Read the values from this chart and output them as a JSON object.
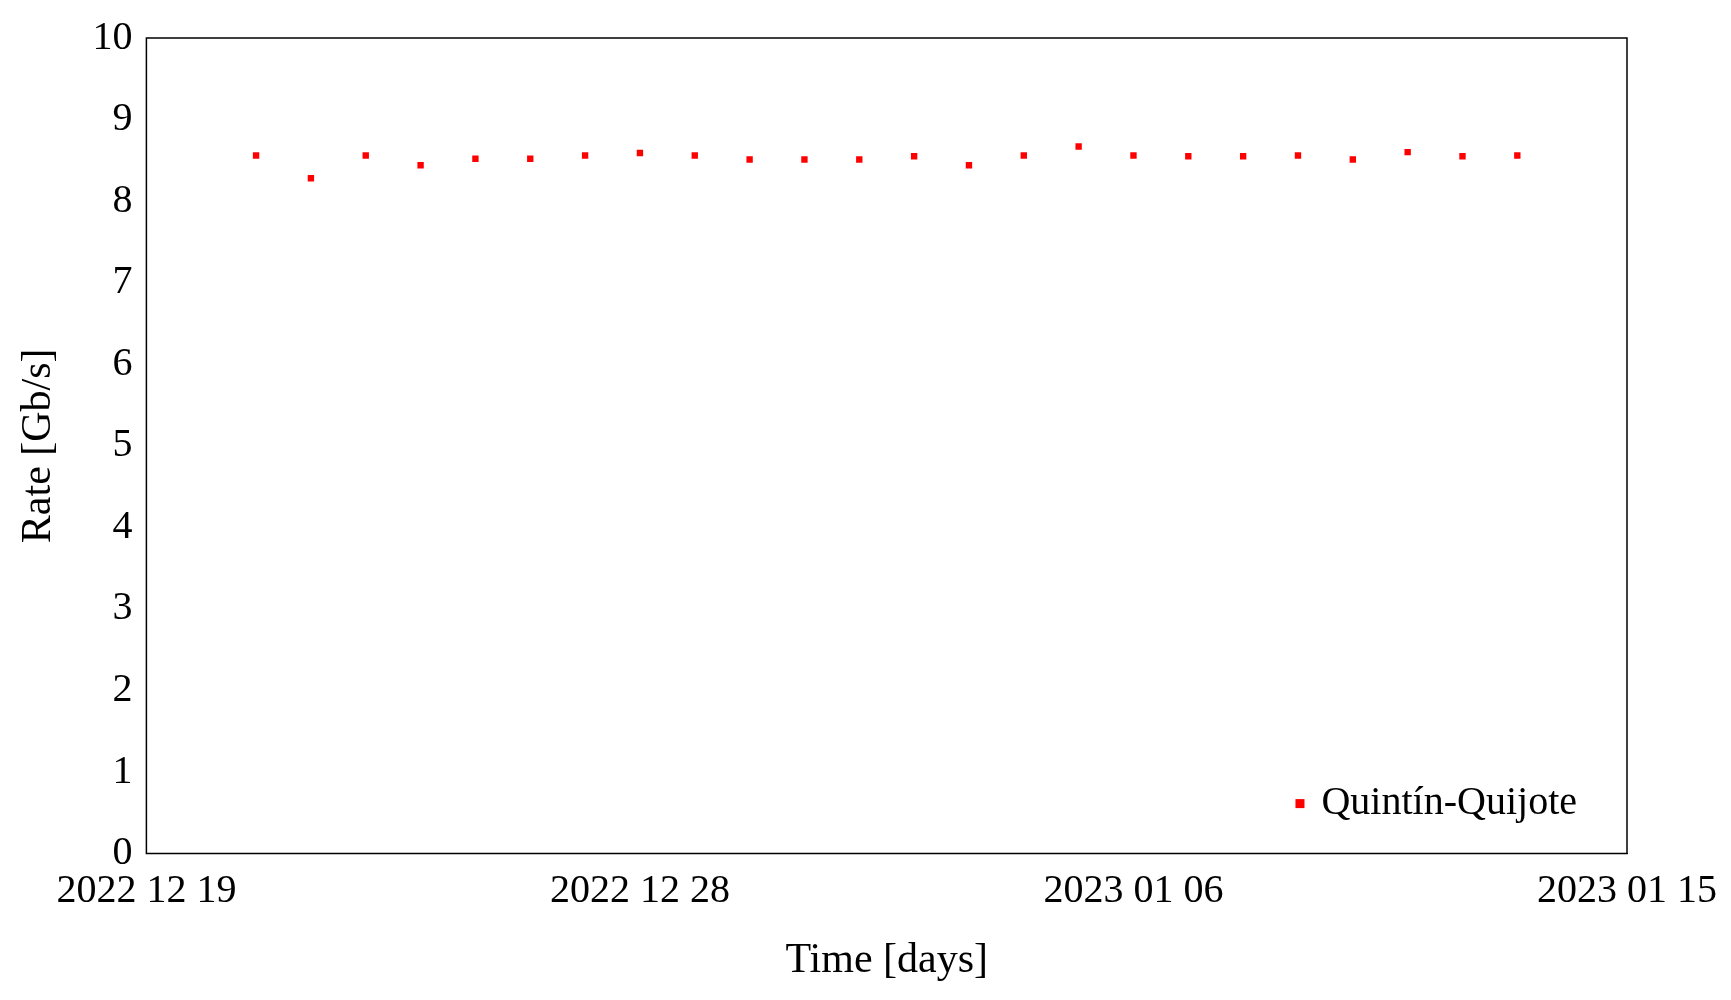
{
  "chart_data": {
    "type": "scatter",
    "xlabel": "Time [days]",
    "ylabel": "Rate [Gb/s]",
    "x": [
      "2022-12-21",
      "2022-12-22",
      "2022-12-23",
      "2022-12-24",
      "2022-12-25",
      "2022-12-26",
      "2022-12-27",
      "2022-12-28",
      "2022-12-29",
      "2022-12-30",
      "2022-12-31",
      "2023-01-01",
      "2023-01-02",
      "2023-01-03",
      "2023-01-04",
      "2023-01-05",
      "2023-01-06",
      "2023-01-07",
      "2023-01-08",
      "2023-01-09",
      "2023-01-10",
      "2023-01-11",
      "2023-01-12",
      "2023-01-13"
    ],
    "series": [
      {
        "name": "Quintín-Quijote",
        "color": "#ff0000",
        "values": [
          8.56,
          8.28,
          8.56,
          8.44,
          8.52,
          8.52,
          8.56,
          8.59,
          8.56,
          8.51,
          8.51,
          8.51,
          8.55,
          8.44,
          8.56,
          8.67,
          8.56,
          8.55,
          8.55,
          8.56,
          8.51,
          8.6,
          8.55,
          8.56
        ]
      }
    ],
    "xlim": [
      "2022-12-19",
      "2023-01-15"
    ],
    "xticks": [
      {
        "value": "2022-12-19",
        "label": "2022 12 19"
      },
      {
        "value": "2022-12-28",
        "label": "2022 12 28"
      },
      {
        "value": "2023-01-06",
        "label": "2023 01 06"
      },
      {
        "value": "2023-01-15",
        "label": "2023 01 15"
      }
    ],
    "ylim": [
      0,
      10
    ],
    "yticks": [
      0,
      1,
      2,
      3,
      4,
      5,
      6,
      7,
      8,
      9,
      10
    ],
    "grid": false,
    "legend": "bottom right",
    "marker": "square"
  }
}
